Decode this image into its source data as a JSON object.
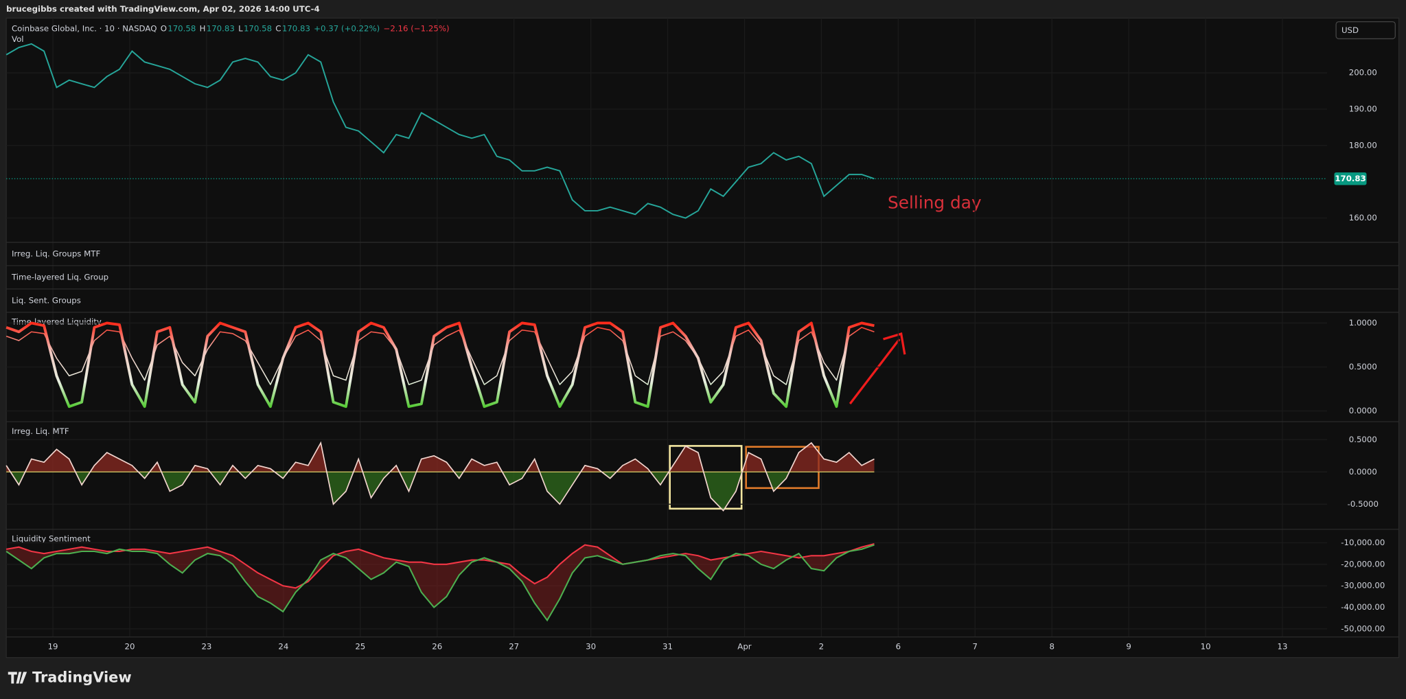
{
  "header": {
    "credit": "brucegibbs created with TradingView.com, Apr 02, 2026 14:00 UTC-4",
    "symbol": "Coinbase Global, Inc. · 10 · NASDAQ",
    "ohlc": [
      {
        "key": "O",
        "value": "170.58"
      },
      {
        "key": "H",
        "value": "170.83"
      },
      {
        "key": "L",
        "value": "170.58"
      },
      {
        "key": "C",
        "value": "170.83"
      }
    ],
    "change": "+0.37 (+0.22%)",
    "change_day": "−2.16 (−1.25%)",
    "volume": "Vol",
    "currency": "USD"
  },
  "collapsed_panes": [
    "Irreg. Liq. Groups MTF",
    "Time-layered Liq. Group",
    "Liq. Sent. Groups"
  ],
  "annotations": {
    "selling_day": "Selling day"
  },
  "footer": {
    "brand": "TradingView"
  },
  "x_axis": {
    "ticks": [
      "19",
      "20",
      "23",
      "24",
      "25",
      "26",
      "27",
      "30",
      "31",
      "Apr",
      "2",
      "6",
      "7",
      "8",
      "9",
      "10",
      "13"
    ]
  },
  "chart_data": [
    {
      "type": "line",
      "color": "#26a69a",
      "last_price": 170.83,
      "last_price_color": "#089981",
      "ylim": [
        153.3,
        215.1
      ],
      "yticks": [
        {
          "value": 160,
          "label": "160.00"
        },
        {
          "value": 180,
          "label": "180.00"
        },
        {
          "value": 190,
          "label": "190.00"
        },
        {
          "value": 200,
          "label": "200.00"
        }
      ],
      "grid": true,
      "values": [
        205,
        207,
        208,
        206,
        196,
        198,
        197,
        196,
        199,
        201,
        206,
        203,
        202,
        201,
        199,
        197,
        196,
        198,
        203,
        204,
        203,
        199,
        198,
        200,
        205,
        203,
        192,
        185,
        184,
        181,
        178,
        183,
        182,
        189,
        187,
        185,
        183,
        182,
        183,
        177,
        176,
        173,
        173,
        174,
        173,
        165,
        162,
        162,
        163,
        162,
        161,
        164,
        163,
        161,
        160,
        162,
        168,
        166,
        170,
        174,
        175,
        178,
        176,
        177,
        175,
        166,
        169,
        172,
        172,
        170.83
      ]
    },
    {
      "type": "gradient-line",
      "title": "Time-layered Liquidity",
      "gradient_colors": [
        "#ff2a1a",
        "#f0c8c0",
        "#e8efe0",
        "#3ec41a"
      ],
      "ylim": [
        -0.122,
        1.122
      ],
      "yticks": [
        {
          "value": 1,
          "label": "1.0000"
        },
        {
          "value": 0.5,
          "label": "0.5000"
        },
        {
          "value": 0,
          "label": "0.0000"
        }
      ],
      "grid": true,
      "series": [
        {
          "values": [
            0.95,
            0.9,
            1,
            0.97,
            0.4,
            0.05,
            0.1,
            0.95,
            1,
            0.98,
            0.3,
            0.05,
            0.9,
            0.95,
            0.3,
            0.1,
            0.85,
            1,
            0.95,
            0.9,
            0.3,
            0.05,
            0.6,
            0.95,
            1,
            0.9,
            0.1,
            0.05,
            0.9,
            1,
            0.95,
            0.7,
            0.05,
            0.08,
            0.85,
            0.95,
            1,
            0.5,
            0.05,
            0.1,
            0.9,
            1,
            0.98,
            0.4,
            0.05,
            0.3,
            0.95,
            1,
            1,
            0.9,
            0.1,
            0.05,
            0.95,
            1,
            0.85,
            0.6,
            0.1,
            0.3,
            0.95,
            1,
            0.8,
            0.2,
            0.05,
            0.9,
            1,
            0.4,
            0.05,
            0.95,
            1,
            0.97
          ]
        },
        {
          "values": [
            0.85,
            0.8,
            0.9,
            0.88,
            0.6,
            0.4,
            0.45,
            0.8,
            0.92,
            0.9,
            0.6,
            0.35,
            0.75,
            0.85,
            0.55,
            0.4,
            0.7,
            0.9,
            0.88,
            0.8,
            0.55,
            0.3,
            0.6,
            0.85,
            0.92,
            0.8,
            0.4,
            0.35,
            0.8,
            0.9,
            0.88,
            0.7,
            0.3,
            0.35,
            0.75,
            0.85,
            0.92,
            0.6,
            0.3,
            0.4,
            0.8,
            0.92,
            0.9,
            0.6,
            0.3,
            0.45,
            0.85,
            0.95,
            0.92,
            0.8,
            0.4,
            0.3,
            0.85,
            0.9,
            0.8,
            0.6,
            0.3,
            0.45,
            0.85,
            0.92,
            0.75,
            0.4,
            0.3,
            0.8,
            0.9,
            0.55,
            0.35,
            0.85,
            0.95,
            0.9
          ]
        }
      ]
    },
    {
      "type": "area",
      "title": "Irreg. Liq. MTF",
      "color": "#f3d6cf",
      "up_color": "#8b2a22",
      "down_color": "#2f6b1c",
      "zero_color": "#c8c060",
      "ylim": [
        -0.889,
        0.778
      ],
      "yticks": [
        {
          "value": 0.5,
          "label": "0.5000"
        },
        {
          "value": 0,
          "label": "0.0000"
        },
        {
          "value": -0.5,
          "label": "-0.5000"
        }
      ],
      "grid": true,
      "values": [
        0.1,
        -0.2,
        0.2,
        0.15,
        0.35,
        0.2,
        -0.2,
        0.1,
        0.3,
        0.2,
        0.1,
        -0.1,
        0.15,
        -0.3,
        -0.2,
        0.1,
        0.05,
        -0.2,
        0.1,
        -0.1,
        0.1,
        0.05,
        -0.1,
        0.15,
        0.1,
        0.45,
        -0.5,
        -0.3,
        0.2,
        -0.4,
        -0.1,
        0.1,
        -0.3,
        0.2,
        0.25,
        0.15,
        -0.1,
        0.2,
        0.1,
        0.15,
        -0.2,
        -0.1,
        0.2,
        -0.3,
        -0.5,
        -0.2,
        0.1,
        0.05,
        -0.1,
        0.1,
        0.2,
        0.05,
        -0.2,
        0.1,
        0.4,
        0.3,
        -0.4,
        -0.6,
        -0.3,
        0.3,
        0.2,
        -0.3,
        -0.1,
        0.3,
        0.45,
        0.2,
        0.15,
        0.3,
        0.1,
        0.2
      ]
    },
    {
      "type": "band",
      "title": "Liquidity Sentiment",
      "fill_color": "#7a1f1f",
      "ylim": [
        -53750,
        -3750
      ],
      "yticks": [
        {
          "value": -10000,
          "label": "-10,000.00"
        },
        {
          "value": -20000,
          "label": "-20,000.00"
        },
        {
          "value": -30000,
          "label": "-30,000.00"
        },
        {
          "value": -40000,
          "label": "-40,000.00"
        },
        {
          "value": -50000,
          "label": "-50,000.00"
        }
      ],
      "grid": true,
      "series": [
        {
          "color": "#f23645",
          "values": [
            -13000,
            -12000,
            -14000,
            -15000,
            -14000,
            -13000,
            -12000,
            -13000,
            -14000,
            -14000,
            -13000,
            -13000,
            -14000,
            -15000,
            -14000,
            -13000,
            -12000,
            -14000,
            -16000,
            -20000,
            -24000,
            -27000,
            -30000,
            -31000,
            -28000,
            -22000,
            -16000,
            -14000,
            -13000,
            -15000,
            -17000,
            -18000,
            -19000,
            -19000,
            -20000,
            -20000,
            -19000,
            -18000,
            -18000,
            -19000,
            -20000,
            -25000,
            -29000,
            -26000,
            -20000,
            -15000,
            -11000,
            -12000,
            -16000,
            -20000,
            -19000,
            -18000,
            -17000,
            -16000,
            -15000,
            -16000,
            -18000,
            -17000,
            -16000,
            -15000,
            -14000,
            -15000,
            -16000,
            -17000,
            -16000,
            -16000,
            -15000,
            -14000,
            -12000,
            -10500
          ]
        },
        {
          "color": "#4caf50",
          "values": [
            -14000,
            -18000,
            -22000,
            -17000,
            -15000,
            -15000,
            -14000,
            -14000,
            -15000,
            -13000,
            -14000,
            -14000,
            -15000,
            -20000,
            -24000,
            -18000,
            -15000,
            -16000,
            -20000,
            -28000,
            -35000,
            -38000,
            -42000,
            -33000,
            -27000,
            -18000,
            -15000,
            -17000,
            -22000,
            -27000,
            -24000,
            -19000,
            -21000,
            -33000,
            -40000,
            -35000,
            -25000,
            -19000,
            -17000,
            -19000,
            -22000,
            -28000,
            -38000,
            -46000,
            -36000,
            -24000,
            -17000,
            -16000,
            -18000,
            -20000,
            -19000,
            -18000,
            -16000,
            -15000,
            -16000,
            -22000,
            -27000,
            -18000,
            -15000,
            -16000,
            -20000,
            -22000,
            -18000,
            -15000,
            -22000,
            -23000,
            -17000,
            -14000,
            -13000,
            -11000
          ]
        }
      ]
    }
  ]
}
